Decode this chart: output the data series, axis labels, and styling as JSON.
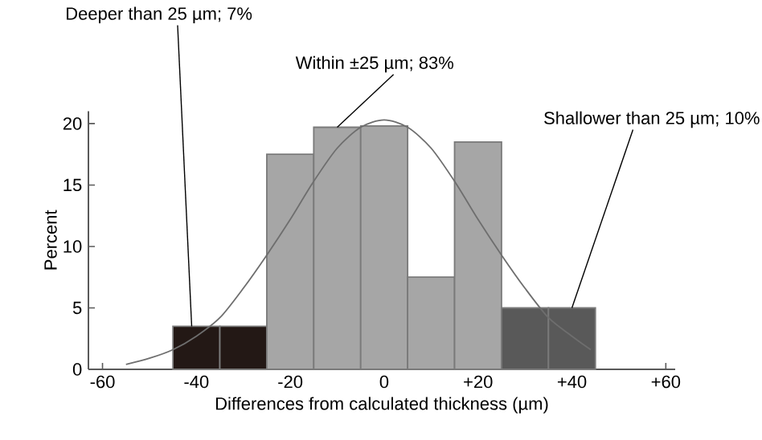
{
  "chart_data": {
    "type": "histogram",
    "xlabel": "Differences from calculated thickness (µm)",
    "ylabel": "Percent",
    "bins": [
      -45,
      -35,
      -25,
      -15,
      -5,
      5,
      15,
      25,
      35,
      45
    ],
    "values": [
      3.5,
      3.5,
      17.5,
      19.7,
      19.8,
      7.5,
      18.5,
      5,
      5
    ],
    "colors": [
      "#231815",
      "#231815",
      "#a6a6a6",
      "#a6a6a6",
      "#a6a6a6",
      "#a6a6a6",
      "#a6a6a6",
      "#595959",
      "#595959"
    ],
    "series": [
      {
        "type": "line",
        "color": "#6e6e6e",
        "x": [
          -55,
          -50,
          -45,
          -40,
          -35,
          -30,
          -25,
          -20,
          -15,
          -10,
          -5,
          0,
          5,
          10,
          15,
          20,
          25,
          30,
          35,
          40,
          44
        ],
        "values": [
          0.4,
          0.9,
          1.6,
          2.7,
          4.2,
          6.6,
          9.3,
          12.2,
          15.3,
          18.0,
          19.7,
          20.3,
          19.7,
          18.0,
          15.3,
          12.2,
          9.3,
          6.6,
          4.2,
          2.7,
          1.6
        ]
      }
    ],
    "xlim": [
      -63,
      62
    ],
    "ylim": [
      0,
      21
    ],
    "xticks": [
      -60,
      -40,
      -20,
      0,
      {
        "value": 20,
        "label": "+20"
      },
      {
        "value": 40,
        "label": "+40"
      },
      {
        "value": 60,
        "label": "+60"
      }
    ],
    "yticks": [
      0,
      5,
      10,
      15,
      20
    ],
    "annotations": [
      {
        "text": "Deeper than 25 µm; 7%",
        "x": -41,
        "y": 3.5
      },
      {
        "text": "Within ±25 µm; 83%",
        "x": -10,
        "y": 19.7
      },
      {
        "text": "Shallower than 25 µm; 10%",
        "x": 40,
        "y": 5
      }
    ]
  }
}
